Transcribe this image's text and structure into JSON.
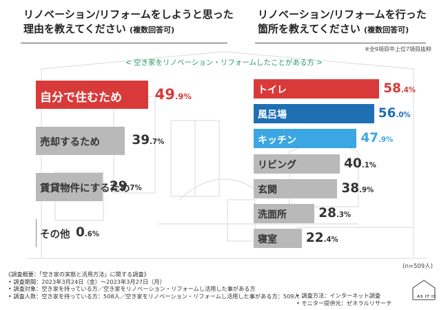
{
  "header": {
    "left_question_line1": "リノベーション/リフォームをしようと思った",
    "left_question_line2": "理由を教えてください",
    "left_question_suffix": "(複数回答可)",
    "right_question_line1": "リノベーション/リフォームを行った",
    "right_question_line2": "箇所を教えてください",
    "right_question_suffix": "(複数回答可)",
    "right_note": "※全9項目中上位7項目抜粋",
    "banner": "< 空き家をリノベーション・リフォームしたことがある方 >"
  },
  "sample_note": "(n=509人)",
  "colors": {
    "red": "#d83a3a",
    "blue": "#1f6fb3",
    "cyan": "#3aa7e2",
    "gray": "#b9b9b9"
  },
  "chart_data": [
    {
      "type": "bar",
      "title": "リノベーション/リフォームをしようと思った理由を教えてください",
      "categories": [
        "自分で住むため",
        "売却するため",
        "賃貸物件にするため",
        "その他"
      ],
      "values": [
        49.9,
        39.7,
        29.7,
        0.6
      ],
      "labels": [
        "49.9%",
        "39.7%",
        "29.7%",
        "0.6%"
      ],
      "highlight": [
        "red",
        "gray",
        "gray",
        "gray"
      ]
    },
    {
      "type": "bar",
      "title": "リノベーション/リフォームを行った箇所を教えてください",
      "categories": [
        "トイレ",
        "風呂場",
        "キッチン",
        "リビング",
        "玄関",
        "洗面所",
        "寝室"
      ],
      "values": [
        58.4,
        56.0,
        47.9,
        40.1,
        38.9,
        28.3,
        22.4
      ],
      "labels": [
        "58.4%",
        "56.0%",
        "47.9%",
        "40.1%",
        "38.9%",
        "28.3%",
        "22.4%"
      ],
      "highlight": [
        "red",
        "blue",
        "cyan",
        "gray",
        "gray",
        "gray",
        "gray"
      ]
    }
  ],
  "footer": {
    "title": "《調査概要：「空き家の実態と活用方法」に関する調査》",
    "period": "• 調査期間：2023年3月24日（金）〜2023年3月27日（月）",
    "target": "• 調査対象：空き家を持っている方／空き家をリノベーション・リフォームし活用した事がある方",
    "count": "• 調査人数：空き家を持っている方：508人／空き家をリノベーション・リフォームし活用した事がある方：509人",
    "method": "• 調査方法：インターネット調査",
    "provider": "• モニター提供元：ゼネラルリサーチ"
  },
  "logo": {
    "text": "AS IT IS",
    "icon": "house-icon"
  }
}
